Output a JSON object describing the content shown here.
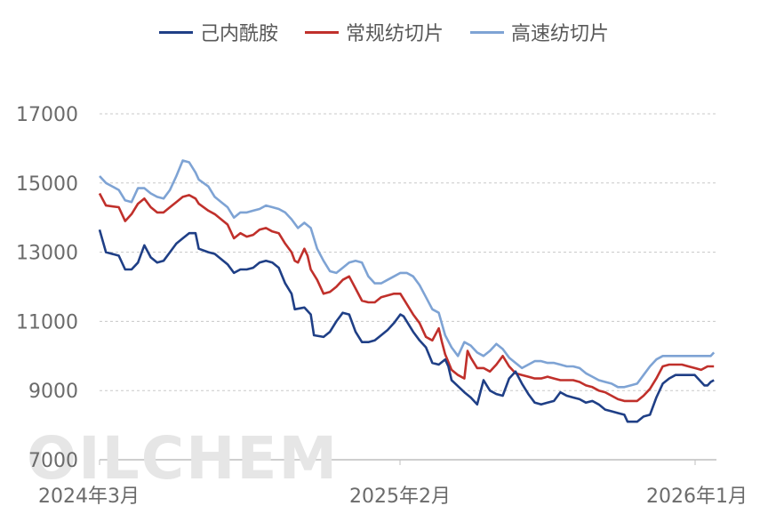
{
  "watermark": "OILCHEM",
  "chart_data": {
    "type": "line",
    "title": "",
    "xlabel": "",
    "ylabel": "",
    "ylim": [
      7000,
      17000
    ],
    "yticks": [
      7000,
      9000,
      11000,
      13000,
      15000,
      17000
    ],
    "x_tick_labels": [
      "2024年3月",
      "2025年2月",
      "2026年1月"
    ],
    "x_range": [
      "2024-03",
      "2026-01"
    ],
    "grid": "horizontal dashed",
    "legend_position": "top-center",
    "series": [
      {
        "name": "己内酰胺",
        "color": "#1f3f86",
        "points": [
          [
            0.0,
            13650
          ],
          [
            0.01,
            13000
          ],
          [
            0.03,
            12900
          ],
          [
            0.04,
            12500
          ],
          [
            0.05,
            12500
          ],
          [
            0.06,
            12700
          ],
          [
            0.07,
            13200
          ],
          [
            0.08,
            12850
          ],
          [
            0.09,
            12700
          ],
          [
            0.1,
            12750
          ],
          [
            0.11,
            13000
          ],
          [
            0.12,
            13250
          ],
          [
            0.13,
            13400
          ],
          [
            0.14,
            13550
          ],
          [
            0.15,
            13550
          ],
          [
            0.155,
            13100
          ],
          [
            0.17,
            13000
          ],
          [
            0.18,
            12950
          ],
          [
            0.19,
            12800
          ],
          [
            0.2,
            12650
          ],
          [
            0.21,
            12400
          ],
          [
            0.22,
            12500
          ],
          [
            0.23,
            12500
          ],
          [
            0.24,
            12550
          ],
          [
            0.25,
            12700
          ],
          [
            0.26,
            12750
          ],
          [
            0.27,
            12700
          ],
          [
            0.28,
            12550
          ],
          [
            0.29,
            12100
          ],
          [
            0.3,
            11800
          ],
          [
            0.305,
            11350
          ],
          [
            0.32,
            11400
          ],
          [
            0.33,
            11200
          ],
          [
            0.335,
            10600
          ],
          [
            0.35,
            10550
          ],
          [
            0.36,
            10700
          ],
          [
            0.37,
            11000
          ],
          [
            0.38,
            11250
          ],
          [
            0.39,
            11200
          ],
          [
            0.4,
            10700
          ],
          [
            0.41,
            10400
          ],
          [
            0.42,
            10400
          ],
          [
            0.43,
            10450
          ],
          [
            0.44,
            10600
          ],
          [
            0.45,
            10750
          ],
          [
            0.46,
            10950
          ],
          [
            0.47,
            11200
          ],
          [
            0.475,
            11150
          ],
          [
            0.49,
            10700
          ],
          [
            0.5,
            10450
          ],
          [
            0.51,
            10250
          ],
          [
            0.52,
            9800
          ],
          [
            0.53,
            9750
          ],
          [
            0.54,
            9900
          ],
          [
            0.545,
            9700
          ],
          [
            0.55,
            9300
          ],
          [
            0.57,
            8950
          ],
          [
            0.58,
            8800
          ],
          [
            0.59,
            8600
          ],
          [
            0.6,
            9300
          ],
          [
            0.605,
            9150
          ],
          [
            0.61,
            9000
          ],
          [
            0.62,
            8900
          ],
          [
            0.63,
            8850
          ],
          [
            0.64,
            9350
          ],
          [
            0.65,
            9550
          ],
          [
            0.66,
            9200
          ],
          [
            0.67,
            8900
          ],
          [
            0.68,
            8650
          ],
          [
            0.69,
            8600
          ],
          [
            0.7,
            8650
          ],
          [
            0.71,
            8700
          ],
          [
            0.72,
            8950
          ],
          [
            0.73,
            8850
          ],
          [
            0.74,
            8800
          ],
          [
            0.75,
            8750
          ],
          [
            0.76,
            8650
          ],
          [
            0.77,
            8700
          ],
          [
            0.78,
            8600
          ],
          [
            0.79,
            8450
          ],
          [
            0.8,
            8400
          ],
          [
            0.81,
            8350
          ],
          [
            0.82,
            8300
          ],
          [
            0.825,
            8100
          ],
          [
            0.84,
            8100
          ],
          [
            0.85,
            8250
          ],
          [
            0.86,
            8300
          ],
          [
            0.87,
            8800
          ],
          [
            0.88,
            9200
          ],
          [
            0.89,
            9350
          ],
          [
            0.9,
            9450
          ],
          [
            0.91,
            9450
          ],
          [
            0.92,
            9450
          ],
          [
            0.93,
            9450
          ],
          [
            0.935,
            9350
          ],
          [
            0.945,
            9150
          ],
          [
            0.95,
            9150
          ],
          [
            0.955,
            9250
          ],
          [
            0.96,
            9300
          ]
        ]
      },
      {
        "name": "常规纺切片",
        "color": "#c0302b",
        "points": [
          [
            0.0,
            14700
          ],
          [
            0.01,
            14350
          ],
          [
            0.03,
            14300
          ],
          [
            0.04,
            13900
          ],
          [
            0.05,
            14100
          ],
          [
            0.06,
            14400
          ],
          [
            0.07,
            14550
          ],
          [
            0.08,
            14300
          ],
          [
            0.09,
            14150
          ],
          [
            0.1,
            14150
          ],
          [
            0.11,
            14300
          ],
          [
            0.12,
            14450
          ],
          [
            0.13,
            14600
          ],
          [
            0.14,
            14650
          ],
          [
            0.15,
            14550
          ],
          [
            0.155,
            14400
          ],
          [
            0.17,
            14200
          ],
          [
            0.18,
            14100
          ],
          [
            0.19,
            13950
          ],
          [
            0.2,
            13800
          ],
          [
            0.21,
            13400
          ],
          [
            0.22,
            13550
          ],
          [
            0.23,
            13450
          ],
          [
            0.24,
            13500
          ],
          [
            0.25,
            13650
          ],
          [
            0.26,
            13700
          ],
          [
            0.27,
            13600
          ],
          [
            0.28,
            13550
          ],
          [
            0.29,
            13250
          ],
          [
            0.3,
            13000
          ],
          [
            0.305,
            12750
          ],
          [
            0.31,
            12700
          ],
          [
            0.32,
            13100
          ],
          [
            0.325,
            12900
          ],
          [
            0.33,
            12500
          ],
          [
            0.34,
            12200
          ],
          [
            0.35,
            11800
          ],
          [
            0.36,
            11850
          ],
          [
            0.37,
            12000
          ],
          [
            0.38,
            12200
          ],
          [
            0.39,
            12300
          ],
          [
            0.4,
            11950
          ],
          [
            0.41,
            11600
          ],
          [
            0.42,
            11550
          ],
          [
            0.43,
            11550
          ],
          [
            0.44,
            11700
          ],
          [
            0.45,
            11750
          ],
          [
            0.46,
            11800
          ],
          [
            0.47,
            11800
          ],
          [
            0.475,
            11650
          ],
          [
            0.49,
            11200
          ],
          [
            0.5,
            10950
          ],
          [
            0.51,
            10550
          ],
          [
            0.52,
            10450
          ],
          [
            0.53,
            10800
          ],
          [
            0.535,
            10400
          ],
          [
            0.54,
            10050
          ],
          [
            0.55,
            9600
          ],
          [
            0.56,
            9450
          ],
          [
            0.57,
            9350
          ],
          [
            0.575,
            10150
          ],
          [
            0.58,
            9950
          ],
          [
            0.59,
            9650
          ],
          [
            0.6,
            9650
          ],
          [
            0.61,
            9550
          ],
          [
            0.62,
            9750
          ],
          [
            0.63,
            10000
          ],
          [
            0.64,
            9700
          ],
          [
            0.65,
            9500
          ],
          [
            0.66,
            9450
          ],
          [
            0.67,
            9400
          ],
          [
            0.68,
            9350
          ],
          [
            0.69,
            9350
          ],
          [
            0.7,
            9400
          ],
          [
            0.71,
            9350
          ],
          [
            0.72,
            9300
          ],
          [
            0.73,
            9300
          ],
          [
            0.74,
            9300
          ],
          [
            0.75,
            9250
          ],
          [
            0.76,
            9150
          ],
          [
            0.77,
            9100
          ],
          [
            0.78,
            9000
          ],
          [
            0.79,
            8950
          ],
          [
            0.8,
            8850
          ],
          [
            0.81,
            8750
          ],
          [
            0.82,
            8700
          ],
          [
            0.83,
            8700
          ],
          [
            0.84,
            8700
          ],
          [
            0.85,
            8850
          ],
          [
            0.86,
            9050
          ],
          [
            0.87,
            9350
          ],
          [
            0.88,
            9700
          ],
          [
            0.89,
            9750
          ],
          [
            0.9,
            9750
          ],
          [
            0.91,
            9750
          ],
          [
            0.92,
            9700
          ],
          [
            0.93,
            9650
          ],
          [
            0.94,
            9600
          ],
          [
            0.95,
            9700
          ],
          [
            0.96,
            9700
          ]
        ]
      },
      {
        "name": "高速纺切片",
        "color": "#7ea3d4",
        "points": [
          [
            0.0,
            15200
          ],
          [
            0.01,
            15000
          ],
          [
            0.03,
            14800
          ],
          [
            0.04,
            14500
          ],
          [
            0.05,
            14450
          ],
          [
            0.06,
            14850
          ],
          [
            0.07,
            14850
          ],
          [
            0.08,
            14700
          ],
          [
            0.09,
            14600
          ],
          [
            0.1,
            14550
          ],
          [
            0.11,
            14800
          ],
          [
            0.12,
            15200
          ],
          [
            0.13,
            15650
          ],
          [
            0.14,
            15600
          ],
          [
            0.15,
            15300
          ],
          [
            0.155,
            15100
          ],
          [
            0.17,
            14900
          ],
          [
            0.18,
            14600
          ],
          [
            0.19,
            14450
          ],
          [
            0.2,
            14300
          ],
          [
            0.21,
            14000
          ],
          [
            0.22,
            14150
          ],
          [
            0.23,
            14150
          ],
          [
            0.24,
            14200
          ],
          [
            0.25,
            14250
          ],
          [
            0.26,
            14350
          ],
          [
            0.27,
            14300
          ],
          [
            0.28,
            14250
          ],
          [
            0.29,
            14150
          ],
          [
            0.3,
            13950
          ],
          [
            0.31,
            13700
          ],
          [
            0.32,
            13850
          ],
          [
            0.33,
            13700
          ],
          [
            0.335,
            13400
          ],
          [
            0.34,
            13100
          ],
          [
            0.35,
            12750
          ],
          [
            0.36,
            12450
          ],
          [
            0.37,
            12400
          ],
          [
            0.38,
            12550
          ],
          [
            0.39,
            12700
          ],
          [
            0.4,
            12750
          ],
          [
            0.41,
            12700
          ],
          [
            0.42,
            12300
          ],
          [
            0.43,
            12100
          ],
          [
            0.44,
            12100
          ],
          [
            0.45,
            12200
          ],
          [
            0.46,
            12300
          ],
          [
            0.47,
            12400
          ],
          [
            0.48,
            12400
          ],
          [
            0.49,
            12300
          ],
          [
            0.5,
            12050
          ],
          [
            0.51,
            11700
          ],
          [
            0.52,
            11350
          ],
          [
            0.53,
            11250
          ],
          [
            0.54,
            10600
          ],
          [
            0.55,
            10250
          ],
          [
            0.56,
            10000
          ],
          [
            0.57,
            10400
          ],
          [
            0.58,
            10300
          ],
          [
            0.59,
            10100
          ],
          [
            0.6,
            10000
          ],
          [
            0.61,
            10150
          ],
          [
            0.62,
            10350
          ],
          [
            0.63,
            10200
          ],
          [
            0.64,
            9950
          ],
          [
            0.65,
            9800
          ],
          [
            0.66,
            9650
          ],
          [
            0.67,
            9750
          ],
          [
            0.68,
            9850
          ],
          [
            0.69,
            9850
          ],
          [
            0.7,
            9800
          ],
          [
            0.71,
            9800
          ],
          [
            0.72,
            9750
          ],
          [
            0.73,
            9700
          ],
          [
            0.74,
            9700
          ],
          [
            0.75,
            9650
          ],
          [
            0.76,
            9500
          ],
          [
            0.77,
            9400
          ],
          [
            0.78,
            9300
          ],
          [
            0.79,
            9250
          ],
          [
            0.8,
            9200
          ],
          [
            0.81,
            9100
          ],
          [
            0.82,
            9100
          ],
          [
            0.83,
            9150
          ],
          [
            0.84,
            9200
          ],
          [
            0.85,
            9450
          ],
          [
            0.86,
            9700
          ],
          [
            0.87,
            9900
          ],
          [
            0.88,
            10000
          ],
          [
            0.89,
            10000
          ],
          [
            0.9,
            10000
          ],
          [
            0.91,
            10000
          ],
          [
            0.92,
            10000
          ],
          [
            0.93,
            10000
          ],
          [
            0.94,
            10000
          ],
          [
            0.95,
            10000
          ],
          [
            0.955,
            10000
          ],
          [
            0.96,
            10100
          ]
        ]
      }
    ]
  }
}
